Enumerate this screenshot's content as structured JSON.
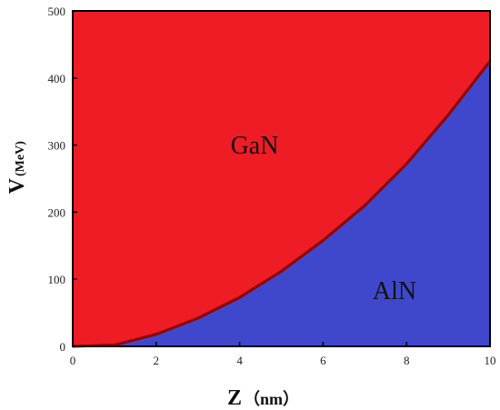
{
  "chart_data": {
    "type": "area",
    "xlabel_main": "Z",
    "xlabel_unit": "（nm）",
    "ylabel_main": "V",
    "ylabel_sub": "(MeV)",
    "xlim": [
      0,
      10
    ],
    "ylim": [
      0,
      500
    ],
    "xticks": [
      "0",
      "2",
      "4",
      "6",
      "8",
      "10"
    ],
    "yticks": [
      "0",
      "100",
      "200",
      "300",
      "400",
      "500"
    ],
    "regions": [
      {
        "label": "GaN",
        "position": "above-curve",
        "color": "#ee1c25"
      },
      {
        "label": "AlN",
        "position": "below-curve",
        "color": "#3f48cc"
      }
    ],
    "boundary_curve": {
      "color": "#8b0000",
      "x": [
        0,
        1,
        2,
        3,
        4,
        5,
        6,
        7,
        8,
        9,
        10
      ],
      "y": [
        0,
        2,
        18,
        42,
        73,
        112,
        158,
        210,
        272,
        345,
        425
      ]
    },
    "grid": false
  }
}
